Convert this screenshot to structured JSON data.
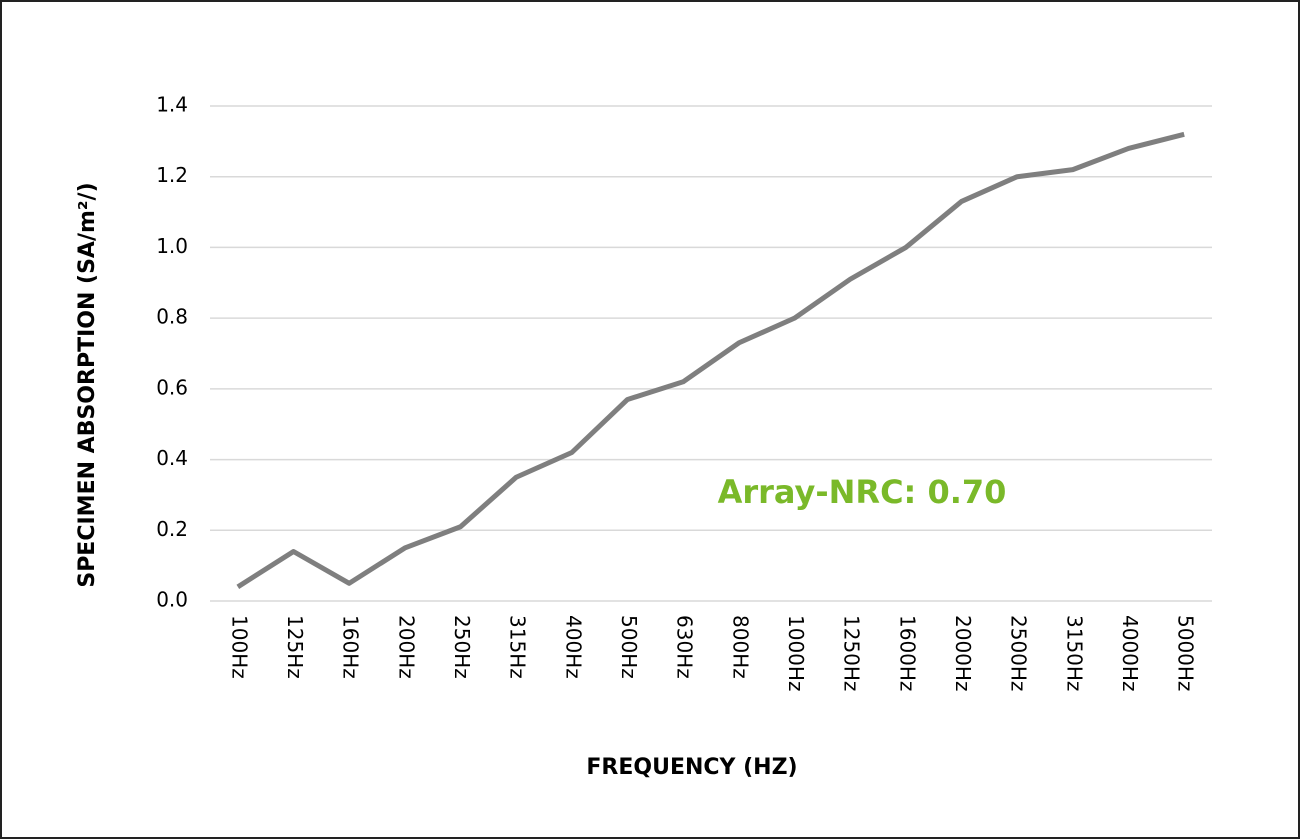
{
  "chart_data": {
    "type": "line",
    "xlabel": "FREQUENCY (HZ)",
    "ylabel": "SPECIMEN ABSORPTION (SA/m²/)",
    "annotation": "Array-NRC: 0.70",
    "categories": [
      "100Hz",
      "125Hz",
      "160Hz",
      "200Hz",
      "250Hz",
      "315Hz",
      "400Hz",
      "500Hz",
      "630Hz",
      "800Hz",
      "1000Hz",
      "1250Hz",
      "1600Hz",
      "2000Hz",
      "2500Hz",
      "3150Hz",
      "4000Hz",
      "5000Hz"
    ],
    "values": [
      0.04,
      0.14,
      0.05,
      0.15,
      0.21,
      0.35,
      0.42,
      0.57,
      0.62,
      0.73,
      0.8,
      0.91,
      1.0,
      1.13,
      1.2,
      1.22,
      1.28,
      1.32
    ],
    "color": "#7f7f7f",
    "ylim": [
      0,
      1.4
    ],
    "yticks": [
      {
        "value": 0,
        "label": "0.0"
      },
      0.2,
      0.4,
      0.6,
      0.8,
      {
        "value": 1,
        "label": "1.0"
      },
      1.2,
      1.4
    ],
    "grid": true
  }
}
